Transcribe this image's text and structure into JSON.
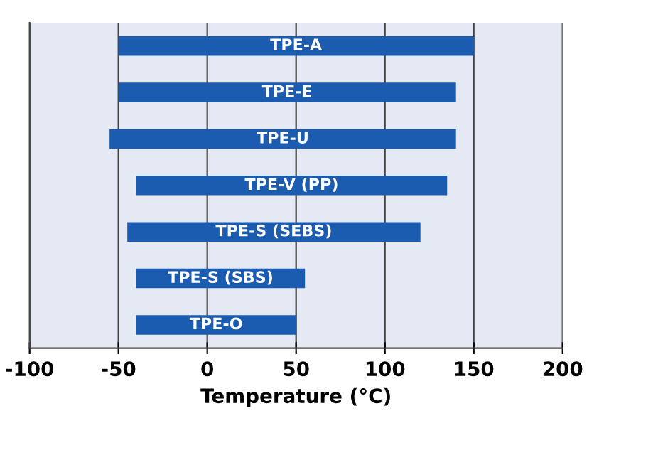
{
  "chart_data": {
    "type": "bar",
    "orientation": "horizontal",
    "xlabel": "Temperature (°C)",
    "categories": [
      "TPE-A",
      "TPE-E",
      "TPE-U",
      "TPE-V (PP)",
      "TPE-S (SEBS)",
      "TPE-S (SBS)",
      "TPE-O"
    ],
    "base": [
      -50,
      -50,
      -55,
      -40,
      -45,
      -40,
      -40
    ],
    "values": [
      200,
      190,
      195,
      175,
      165,
      95,
      90
    ],
    "color": "#1c5cb0",
    "xlim": [
      -100,
      200
    ],
    "xticks": [
      -100,
      -50,
      0,
      50,
      100,
      150,
      200
    ],
    "grid": "x",
    "tick_labels": "x"
  }
}
